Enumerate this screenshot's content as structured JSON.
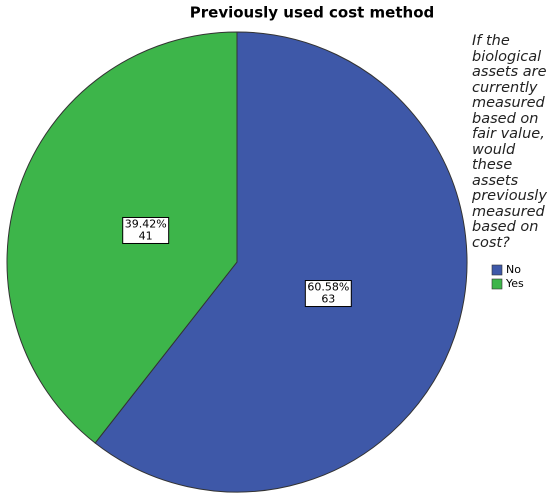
{
  "chart_data": {
    "type": "pie",
    "title": "Previously used cost method",
    "legend_title": "If the biological assets are currently measured based on fair value, would these assets previously measured based on cost?",
    "categories": [
      "No",
      "Yes"
    ],
    "values": [
      60.58,
      39.42
    ],
    "value_labels": [
      "60.58%",
      "39.42%"
    ],
    "counts": [
      63,
      41
    ],
    "colors": [
      "#3e58a8",
      "#3db54a"
    ],
    "legend_position": "right"
  }
}
